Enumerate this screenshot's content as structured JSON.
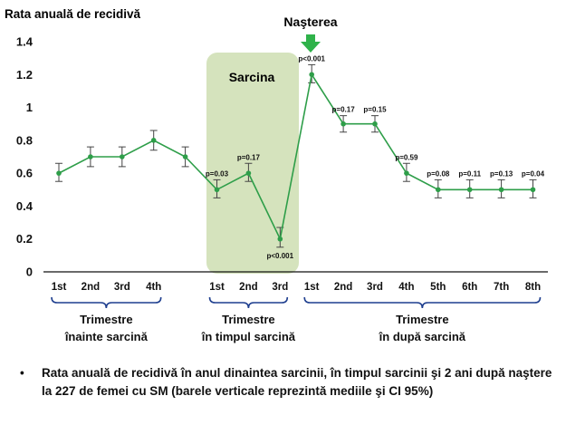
{
  "chart_data": {
    "type": "line",
    "ylabel": "Rata anuală de recidivă",
    "ylim": [
      0,
      1.4
    ],
    "yticks": [
      "0",
      "0.2",
      "0.4",
      "0.6",
      "0.8",
      "1",
      "1.2",
      "1.4"
    ],
    "grid": false,
    "x": [
      "1st",
      "2nd",
      "3rd",
      "4th",
      "",
      "1st",
      "2nd",
      "3rd",
      "1st",
      "2nd",
      "3rd",
      "4th",
      "5th",
      "6th",
      "7th",
      "8th"
    ],
    "series": [
      {
        "values": [
          0.6,
          0.7,
          0.7,
          0.8,
          0.7,
          0.5,
          0.6,
          0.2,
          1.2,
          0.9,
          0.9,
          0.6,
          0.5,
          0.5,
          0.5,
          0.5
        ],
        "ci_low": [
          0.55,
          0.64,
          0.64,
          0.74,
          0.64,
          0.45,
          0.55,
          0.15,
          1.15,
          0.85,
          0.85,
          0.55,
          0.45,
          0.45,
          0.45,
          0.45
        ],
        "ci_high": [
          0.66,
          0.76,
          0.76,
          0.86,
          0.76,
          0.56,
          0.66,
          0.27,
          1.26,
          0.95,
          0.95,
          0.66,
          0.56,
          0.56,
          0.56,
          0.56
        ],
        "pvalues": [
          "",
          "",
          "",
          "",
          "",
          "p=0.03",
          "p=0.17",
          "p<0.001",
          "p<0.001",
          "p=0.17",
          "p=0.15",
          "p=0.59",
          "p=0.08",
          "p=0.11",
          "p=0.13",
          "p=0.04"
        ]
      }
    ],
    "annotations": {
      "pregnancy": "Sarcina",
      "birth": "Naşterea"
    },
    "groups": [
      {
        "line1": "Trimestre",
        "line2": "înainte sarcină"
      },
      {
        "line1": "Trimestre",
        "line2": "în timpul sarcină"
      },
      {
        "line1": "Trimestre",
        "line2": "în după sarcină"
      }
    ],
    "colors": {
      "line": "#2e9e49",
      "shade": "#d5e3bd",
      "arrow": "#2fb24a",
      "bracket": "#1f3f8f",
      "errorbar": "#444444"
    }
  },
  "footnote": {
    "bullet": "•",
    "text": "Rata anuală de recidivă în anul dinaintea sarcinii, în timpul sarcinii şi 2 ani după naştere la 227 de femei cu SM (barele verticale reprezintă mediile şi CI 95%)"
  }
}
